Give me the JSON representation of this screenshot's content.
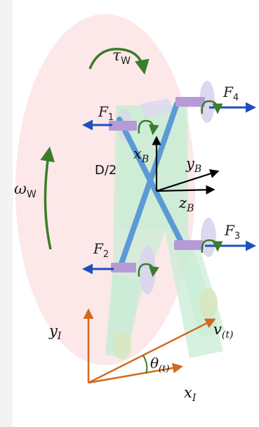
{
  "labels": {
    "tau": "τ",
    "tau_sub": "W",
    "omega": "ω",
    "omega_sub": "W",
    "f1": "F",
    "f1_sub": "1",
    "f2": "F",
    "f2_sub": "2",
    "f3": "F",
    "f3_sub": "3",
    "f4": "F",
    "f4_sub": "4",
    "xb": "x",
    "xb_sub": "B",
    "yb": "y",
    "yb_sub": "B",
    "zb": "z",
    "zb_sub": "B",
    "half_d": "D/2",
    "yi": "y",
    "yi_sub": "I",
    "xi": "x",
    "xi_sub": "I",
    "v": "v",
    "v_sub": "(t)",
    "theta": "θ",
    "theta_sub": "(t)"
  },
  "colors": {
    "ellipse_fill": "#fbe4e4",
    "body_fill": "#c9ecd6",
    "cross_bar": "#5b9bd5",
    "force_arrow": "#1f4fbf",
    "rotation_arrow": "#3a7d2a",
    "inertial_axes": "#d26a1e",
    "body_axes": "#000000",
    "motor": "#b79ad8",
    "wheel_ghost": "#d9d4ee"
  }
}
